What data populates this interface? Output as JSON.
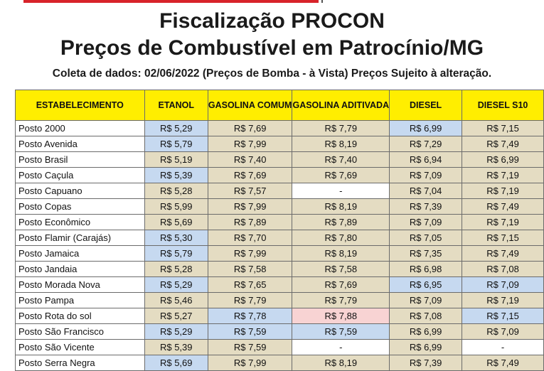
{
  "title_line1": "Fiscalização PROCON",
  "title_line2": "Preços de Combustível em Patrocínio/MG",
  "subtitle": "Coleta de dados: 02/06/2022 (Preços de Bomba - à Vista) Preços Sujeito à alteração.",
  "table": {
    "headers": [
      "ESTABELECIMENTO",
      "ETANOL",
      "GASOLINA COMUM",
      "GASOLINA ADITIVADA",
      "DIESEL",
      "DIESEL S10"
    ],
    "rows": [
      {
        "name": "Posto 2000",
        "values": [
          "R$ 5,29",
          "R$ 7,69",
          "R$ 7,79",
          "R$ 6,99",
          "R$ 7,15"
        ],
        "hl": [
          "b",
          "c",
          "c",
          "b",
          "c"
        ]
      },
      {
        "name": "Posto Avenida",
        "values": [
          "R$ 5,79",
          "R$ 7,99",
          "R$ 8,19",
          "R$ 7,29",
          "R$ 7,49"
        ],
        "hl": [
          "b",
          "c",
          "c",
          "c",
          "c"
        ]
      },
      {
        "name": "Posto Brasil",
        "values": [
          "R$ 5,19",
          "R$ 7,40",
          "R$ 7,40",
          "R$ 6,94",
          "R$ 6,99"
        ],
        "hl": [
          "c",
          "c",
          "c",
          "c",
          "c"
        ]
      },
      {
        "name": "Posto Caçula",
        "values": [
          "R$ 5,39",
          "R$ 7,69",
          "R$ 7,69",
          "R$ 7,09",
          "R$ 7,19"
        ],
        "hl": [
          "b",
          "c",
          "c",
          "c",
          "c"
        ]
      },
      {
        "name": "Posto Capuano",
        "values": [
          "R$ 5,28",
          "R$ 7,57",
          "-",
          "R$ 7,04",
          "R$ 7,19"
        ],
        "hl": [
          "c",
          "c",
          "w",
          "c",
          "c"
        ]
      },
      {
        "name": "Posto Copas",
        "values": [
          "R$ 5,99",
          "R$ 7,99",
          "R$ 8,19",
          "R$ 7,39",
          "R$ 7,49"
        ],
        "hl": [
          "c",
          "c",
          "c",
          "c",
          "c"
        ]
      },
      {
        "name": "Posto Econômico",
        "values": [
          "R$ 5,69",
          "R$ 7,89",
          "R$ 7,89",
          "R$ 7,09",
          "R$ 7,19"
        ],
        "hl": [
          "c",
          "c",
          "c",
          "c",
          "c"
        ]
      },
      {
        "name": "Posto Flamir (Carajás)",
        "values": [
          "R$ 5,30",
          "R$ 7,70",
          "R$ 7,80",
          "R$ 7,05",
          "R$ 7,15"
        ],
        "hl": [
          "b",
          "c",
          "c",
          "c",
          "c"
        ]
      },
      {
        "name": "Posto Jamaica",
        "values": [
          "R$ 5,79",
          "R$ 7,99",
          "R$ 8,19",
          "R$ 7,35",
          "R$ 7,49"
        ],
        "hl": [
          "b",
          "c",
          "c",
          "c",
          "c"
        ]
      },
      {
        "name": "Posto Jandaia",
        "values": [
          "R$ 5,28",
          "R$ 7,58",
          "R$ 7,58",
          "R$ 6,98",
          "R$ 7,08"
        ],
        "hl": [
          "c",
          "c",
          "c",
          "c",
          "c"
        ]
      },
      {
        "name": "Posto Morada Nova",
        "values": [
          "R$ 5,29",
          "R$ 7,65",
          "R$ 7,69",
          "R$ 6,95",
          "R$ 7,09"
        ],
        "hl": [
          "b",
          "c",
          "c",
          "b",
          "b"
        ]
      },
      {
        "name": "Posto Pampa",
        "values": [
          "R$ 5,46",
          "R$ 7,79",
          "R$ 7,79",
          "R$ 7,09",
          "R$ 7,19"
        ],
        "hl": [
          "c",
          "c",
          "c",
          "c",
          "c"
        ]
      },
      {
        "name": "Posto Rota do sol",
        "values": [
          "R$ 5,27",
          "R$ 7,78",
          "R$ 7,88",
          "R$ 7,08",
          "R$ 7,15"
        ],
        "hl": [
          "c",
          "b",
          "p",
          "c",
          "b"
        ]
      },
      {
        "name": "Posto São Francisco",
        "values": [
          "R$ 5,29",
          "R$ 7,59",
          "R$ 7,59",
          "R$ 6,99",
          "R$ 7,09"
        ],
        "hl": [
          "b",
          "b",
          "b",
          "c",
          "c"
        ]
      },
      {
        "name": "Posto São Vicente",
        "values": [
          "R$ 5,39",
          "R$ 7,59",
          "-",
          "R$ 6,99",
          "-"
        ],
        "hl": [
          "c",
          "c",
          "w",
          "c",
          "w"
        ]
      },
      {
        "name": "Posto Serra Negra",
        "values": [
          "R$ 5,69",
          "R$ 7,99",
          "R$ 8,19",
          "R$ 7,39",
          "R$ 7,49"
        ],
        "hl": [
          "b",
          "c",
          "c",
          "c",
          "c"
        ]
      }
    ]
  }
}
